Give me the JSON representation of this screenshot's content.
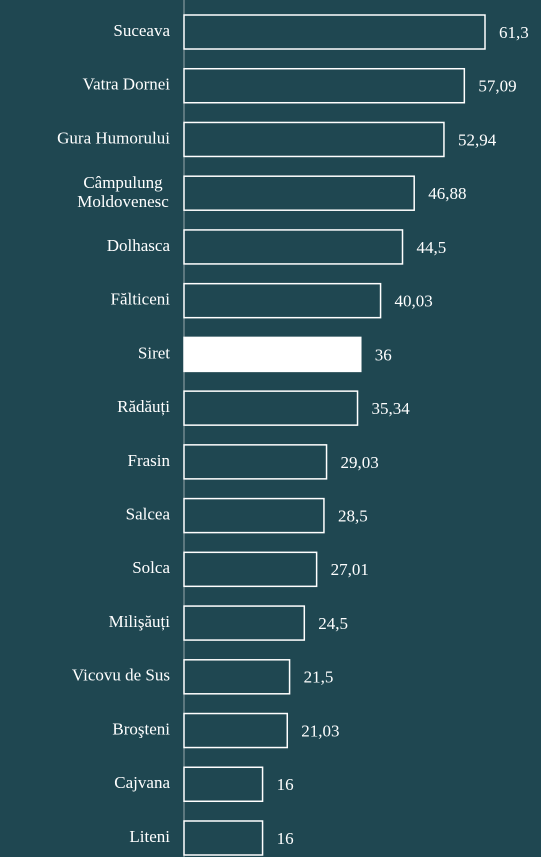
{
  "chart_data": {
    "type": "bar",
    "orientation": "horizontal",
    "categories": [
      "Suceava",
      "Vatra Dornei",
      "Gura Humorului",
      "Câmpulung Moldovenesc",
      "Dolhasca",
      "Fălticeni",
      "Siret",
      "Rădăuți",
      "Frasin",
      "Salcea",
      "Solca",
      "Milişăuți",
      "Vicovu de Sus",
      "Broşteni",
      "Cajvana",
      "Liteni"
    ],
    "values": [
      61.3,
      57.09,
      52.94,
      46.88,
      44.5,
      40.03,
      36,
      35.34,
      29.03,
      28.5,
      27.01,
      24.5,
      21.5,
      21.03,
      16,
      16
    ],
    "value_labels": [
      "61,3",
      "57,09",
      "52,94",
      "46,88",
      "44,5",
      "40,03",
      "36",
      "35,34",
      "29,03",
      "28,5",
      "27,01",
      "24,5",
      "21,5",
      "21,03",
      "16",
      "16"
    ],
    "colors": [
      "#1f4751",
      "#1f4751",
      "#1f4751",
      "#1f4751",
      "#1f4751",
      "#1f4751",
      "#ffffff",
      "#1f4751",
      "#1f4751",
      "#1f4751",
      "#1f4751",
      "#1f4751",
      "#1f4751",
      "#1f4751",
      "#1f4751",
      "#1f4751"
    ],
    "edge_color": "#ffffff"
  }
}
